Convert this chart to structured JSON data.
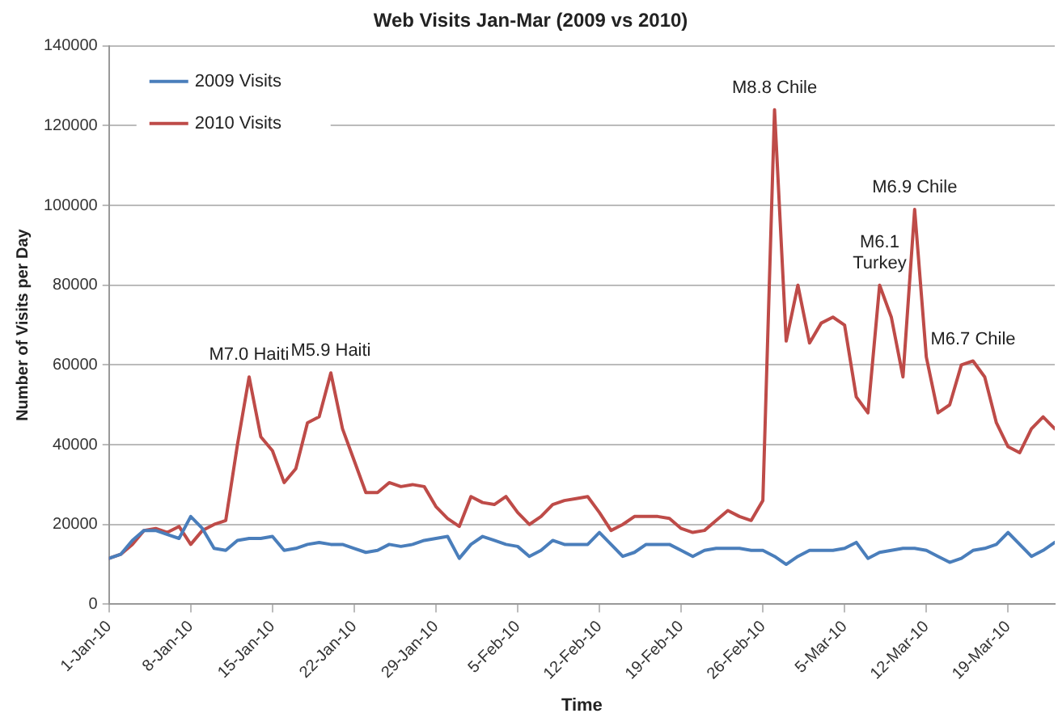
{
  "chart_data": {
    "type": "line",
    "title": "Web Visits Jan-Mar (2009 vs 2010)",
    "xlabel": "Time",
    "ylabel": "Number of Visits per Day",
    "x": [
      "2010-01-01",
      "2010-01-02",
      "2010-01-03",
      "2010-01-04",
      "2010-01-05",
      "2010-01-06",
      "2010-01-07",
      "2010-01-08",
      "2010-01-09",
      "2010-01-10",
      "2010-01-11",
      "2010-01-12",
      "2010-01-13",
      "2010-01-14",
      "2010-01-15",
      "2010-01-16",
      "2010-01-17",
      "2010-01-18",
      "2010-01-19",
      "2010-01-20",
      "2010-01-21",
      "2010-01-22",
      "2010-01-23",
      "2010-01-24",
      "2010-01-25",
      "2010-01-26",
      "2010-01-27",
      "2010-01-28",
      "2010-01-29",
      "2010-01-30",
      "2010-01-31",
      "2010-02-01",
      "2010-02-02",
      "2010-02-03",
      "2010-02-04",
      "2010-02-05",
      "2010-02-06",
      "2010-02-07",
      "2010-02-08",
      "2010-02-09",
      "2010-02-10",
      "2010-02-11",
      "2010-02-12",
      "2010-02-13",
      "2010-02-14",
      "2010-02-15",
      "2010-02-16",
      "2010-02-17",
      "2010-02-18",
      "2010-02-19",
      "2010-02-20",
      "2010-02-21",
      "2010-02-22",
      "2010-02-23",
      "2010-02-24",
      "2010-02-25",
      "2010-02-26",
      "2010-02-27",
      "2010-02-28",
      "2010-03-01",
      "2010-03-02",
      "2010-03-03",
      "2010-03-04",
      "2010-03-05",
      "2010-03-06",
      "2010-03-07",
      "2010-03-08",
      "2010-03-09",
      "2010-03-10",
      "2010-03-11",
      "2010-03-12",
      "2010-03-13",
      "2010-03-14",
      "2010-03-15",
      "2010-03-16",
      "2010-03-17",
      "2010-03-18",
      "2010-03-19",
      "2010-03-20",
      "2010-03-21",
      "2010-03-22",
      "2010-03-23"
    ],
    "series": [
      {
        "name": "2009 Visits",
        "color": "#4a7ebb",
        "values": [
          11500,
          12500,
          16000,
          18500,
          18500,
          17500,
          16500,
          22000,
          19000,
          14000,
          13500,
          16000,
          16500,
          16500,
          17000,
          13500,
          14000,
          15000,
          15500,
          15000,
          15000,
          14000,
          13000,
          13500,
          15000,
          14500,
          15000,
          16000,
          16500,
          17000,
          11500,
          15000,
          17000,
          16000,
          15000,
          14500,
          12000,
          13500,
          16000,
          15000,
          15000,
          15000,
          18000,
          15000,
          12000,
          13000,
          15000,
          15000,
          15000,
          13500,
          12000,
          13500,
          14000,
          14000,
          14000,
          13500,
          13500,
          12000,
          10000,
          12000,
          13500,
          13500,
          13500,
          14000,
          15500,
          11500,
          13000,
          13500,
          14000,
          14000,
          13500,
          12000,
          10500,
          11500,
          13500,
          14000,
          15000,
          18000,
          15000,
          12000,
          13500,
          15500
        ]
      },
      {
        "name": "2010 Visits",
        "color": "#be4b48",
        "values": [
          11500,
          12500,
          15000,
          18500,
          19000,
          18000,
          19500,
          15000,
          18500,
          20000,
          21000,
          40000,
          57000,
          42000,
          38500,
          30500,
          34000,
          45500,
          47000,
          58000,
          44000,
          36000,
          28000,
          28000,
          30500,
          29500,
          30000,
          29500,
          24500,
          21500,
          19500,
          27000,
          25500,
          25000,
          27000,
          23000,
          20000,
          22000,
          25000,
          26000,
          26500,
          27000,
          23000,
          18500,
          20000,
          22000,
          22000,
          22000,
          21500,
          19000,
          18000,
          18500,
          21000,
          23500,
          22000,
          21000,
          26000,
          124000,
          66000,
          80000,
          65500,
          70500,
          72000,
          70000,
          52000,
          48000,
          80000,
          72000,
          57000,
          99000,
          62000,
          48000,
          50000,
          60000,
          61000,
          57000,
          45500,
          39500,
          38000,
          44000,
          47000,
          44000
        ]
      }
    ],
    "xlim": [
      "2010-01-01",
      "2010-03-23"
    ],
    "xticks": [
      {
        "value": "2010-01-01",
        "label": "1-Jan-10"
      },
      {
        "value": "2010-01-08",
        "label": "8-Jan-10"
      },
      {
        "value": "2010-01-15",
        "label": "15-Jan-10"
      },
      {
        "value": "2010-01-22",
        "label": "22-Jan-10"
      },
      {
        "value": "2010-01-29",
        "label": "29-Jan-10"
      },
      {
        "value": "2010-02-05",
        "label": "5-Feb-10"
      },
      {
        "value": "2010-02-12",
        "label": "12-Feb-10"
      },
      {
        "value": "2010-02-19",
        "label": "19-Feb-10"
      },
      {
        "value": "2010-02-26",
        "label": "26-Feb-10"
      },
      {
        "value": "2010-03-05",
        "label": "5-Mar-10"
      },
      {
        "value": "2010-03-12",
        "label": "12-Mar-10"
      },
      {
        "value": "2010-03-19",
        "label": "19-Mar-10"
      }
    ],
    "ylim": [
      0,
      140000
    ],
    "yticks": [
      0,
      20000,
      40000,
      60000,
      80000,
      100000,
      120000,
      140000
    ],
    "grid": "y",
    "legend": "top left",
    "marker": "none",
    "line_style": "solid",
    "annotations": [
      {
        "text": "M7.0 Haiti",
        "x": "2010-01-13",
        "y": 57000
      },
      {
        "text": "M5.9 Haiti",
        "x": "2010-01-20",
        "y": 58000
      },
      {
        "text": "M8.8 Chile",
        "x": "2010-02-27",
        "y": 124000
      },
      {
        "text": "M6.1\nTurkey",
        "x": "2010-03-08",
        "y": 80000
      },
      {
        "text": "M6.9 Chile",
        "x": "2010-03-11",
        "y": 99000
      },
      {
        "text": "M6.7 Chile",
        "x": "2010-03-16",
        "y": 61000
      }
    ]
  }
}
